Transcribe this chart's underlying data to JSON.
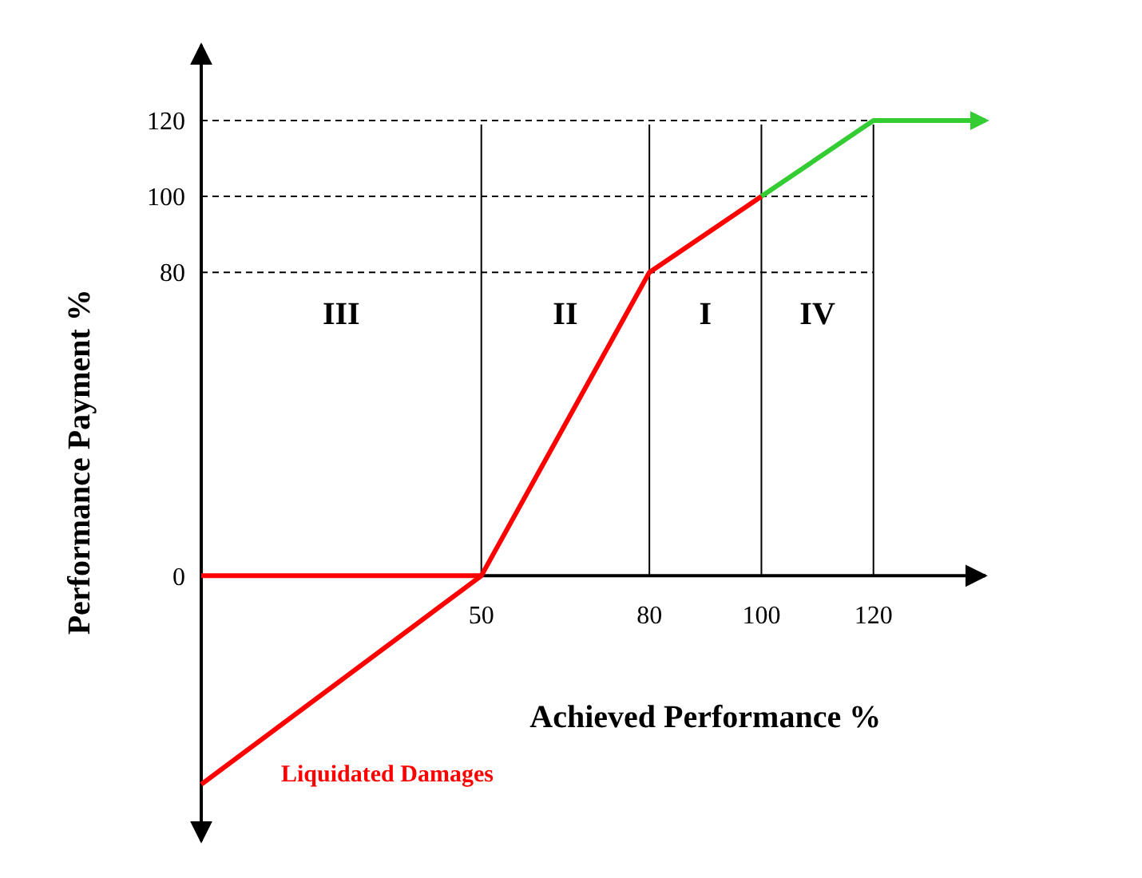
{
  "chart_data": {
    "type": "line",
    "xlabel": "Achieved Performance %",
    "ylabel": "Performance Payment %",
    "xlim": [
      0,
      140
    ],
    "ylim": [
      -70,
      140
    ],
    "xticks": [
      50,
      80,
      100,
      120
    ],
    "yticks": [
      0,
      80,
      100,
      120
    ],
    "grid": false,
    "marker": "none",
    "line_style": "solid",
    "series": [
      {
        "color": "#ff0000",
        "x": [
          0,
          50
        ],
        "values": [
          0,
          0
        ]
      },
      {
        "name": "Liquidated Damages",
        "color": "#ff0000",
        "x": [
          0,
          50,
          80,
          100
        ],
        "values": [
          -55,
          0,
          80,
          100
        ]
      },
      {
        "color": "#33cc33",
        "x": [
          100,
          120,
          140
        ],
        "values": [
          100,
          120,
          120
        ]
      }
    ],
    "ref_lines": [
      {
        "axis": "x",
        "value": 50,
        "color": "#000000",
        "line_style": "solid"
      },
      {
        "axis": "x",
        "value": 80,
        "color": "#000000",
        "line_style": "solid"
      },
      {
        "axis": "x",
        "value": 100,
        "color": "#000000",
        "line_style": "solid"
      },
      {
        "axis": "x",
        "value": 120,
        "color": "#000000",
        "line_style": "solid"
      },
      {
        "axis": "y",
        "value": 80,
        "color": "#000000",
        "line_style": "dashed"
      },
      {
        "axis": "y",
        "value": 100,
        "color": "#000000",
        "line_style": "dashed"
      },
      {
        "axis": "y",
        "value": 120,
        "color": "#000000",
        "line_style": "dashed"
      }
    ],
    "annotations": [
      "III",
      "II",
      "I",
      "IV"
    ]
  }
}
